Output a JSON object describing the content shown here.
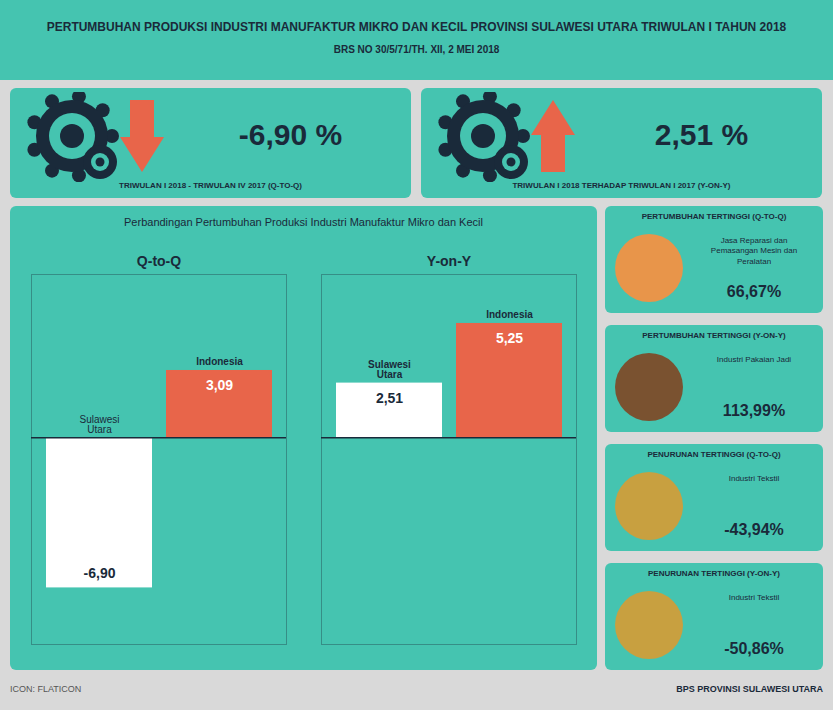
{
  "chart_data": {
    "type": "bar",
    "title": "PERTUMBUHAN PRODUKSI INDUSTRI MANUFAKTUR MIKRO DAN KECIL PROVINSI SULAWESI UTARA TRIWULAN I TAHUN 2018",
    "subtitle": "BRS NO 30/5/71/TH. XII, 2 MEI 2018",
    "chart_title": "Perbandingan Pertumbuhan Produksi Industri Manufaktur Mikro dan Kecil",
    "categories": [
      "Q-to-Q",
      "Y-on-Y"
    ],
    "series": [
      {
        "name": "Sulawesi\nUtara",
        "color": "#ffffff",
        "values": [
          -6.9,
          2.51
        ],
        "value_labels": [
          "-6,90",
          "2,51"
        ]
      },
      {
        "name": "Indonesia",
        "color": "#e8654a",
        "values": [
          3.09,
          5.25
        ],
        "value_labels": [
          "3,09",
          "5,25"
        ]
      }
    ],
    "ylim": [
      -9.5,
      7.5
    ],
    "data_labels": true,
    "tick_labels": false,
    "grid": false,
    "cards": [
      {
        "value": -6.9,
        "value_label": "-6,90 %",
        "label": "TRIWULAN I 2018 - TRIWULAN IV 2017 (Q-TO-Q)",
        "color": "#e8654a"
      },
      {
        "value": 2.51,
        "value_label": "2,51 %",
        "label": "TRIWULAN I 2018 TERHADAP TRIWULAN I 2017 (Y-ON-Y)",
        "color": "#e8654a"
      }
    ],
    "sidebar": [
      {
        "title": "PERTUMBUHAN TERTINGGI (Q-TO-Q)",
        "sub": "Jasa Reparasi dan\nPemasangan Mesin dan\nPeralatan",
        "value": 66.67,
        "value_label": "66,67%",
        "color": "#e8954a"
      },
      {
        "title": "PERTUMBUHAN TERTINGGI (Y-ON-Y)",
        "sub": "Industri Pakaian Jadi",
        "value": 113.99,
        "value_label": "113,99%",
        "color": "#7a5230"
      },
      {
        "title": "PENURUNAN TERTINGGI (Q-TO-Q)",
        "sub": "Industri Tekstil",
        "value": -43.94,
        "value_label": "-43,94%",
        "color": "#c8a040"
      },
      {
        "title": "PENURUNAN TERTINGGI (Y-ON-Y)",
        "sub": "Industri Tekstil",
        "value": -50.86,
        "value_label": "-50,86%",
        "color": "#c8a040"
      }
    ],
    "footer": [
      "ICON: FLATICON",
      "BPS PROVINSI SULAWESI UTARA"
    ]
  }
}
